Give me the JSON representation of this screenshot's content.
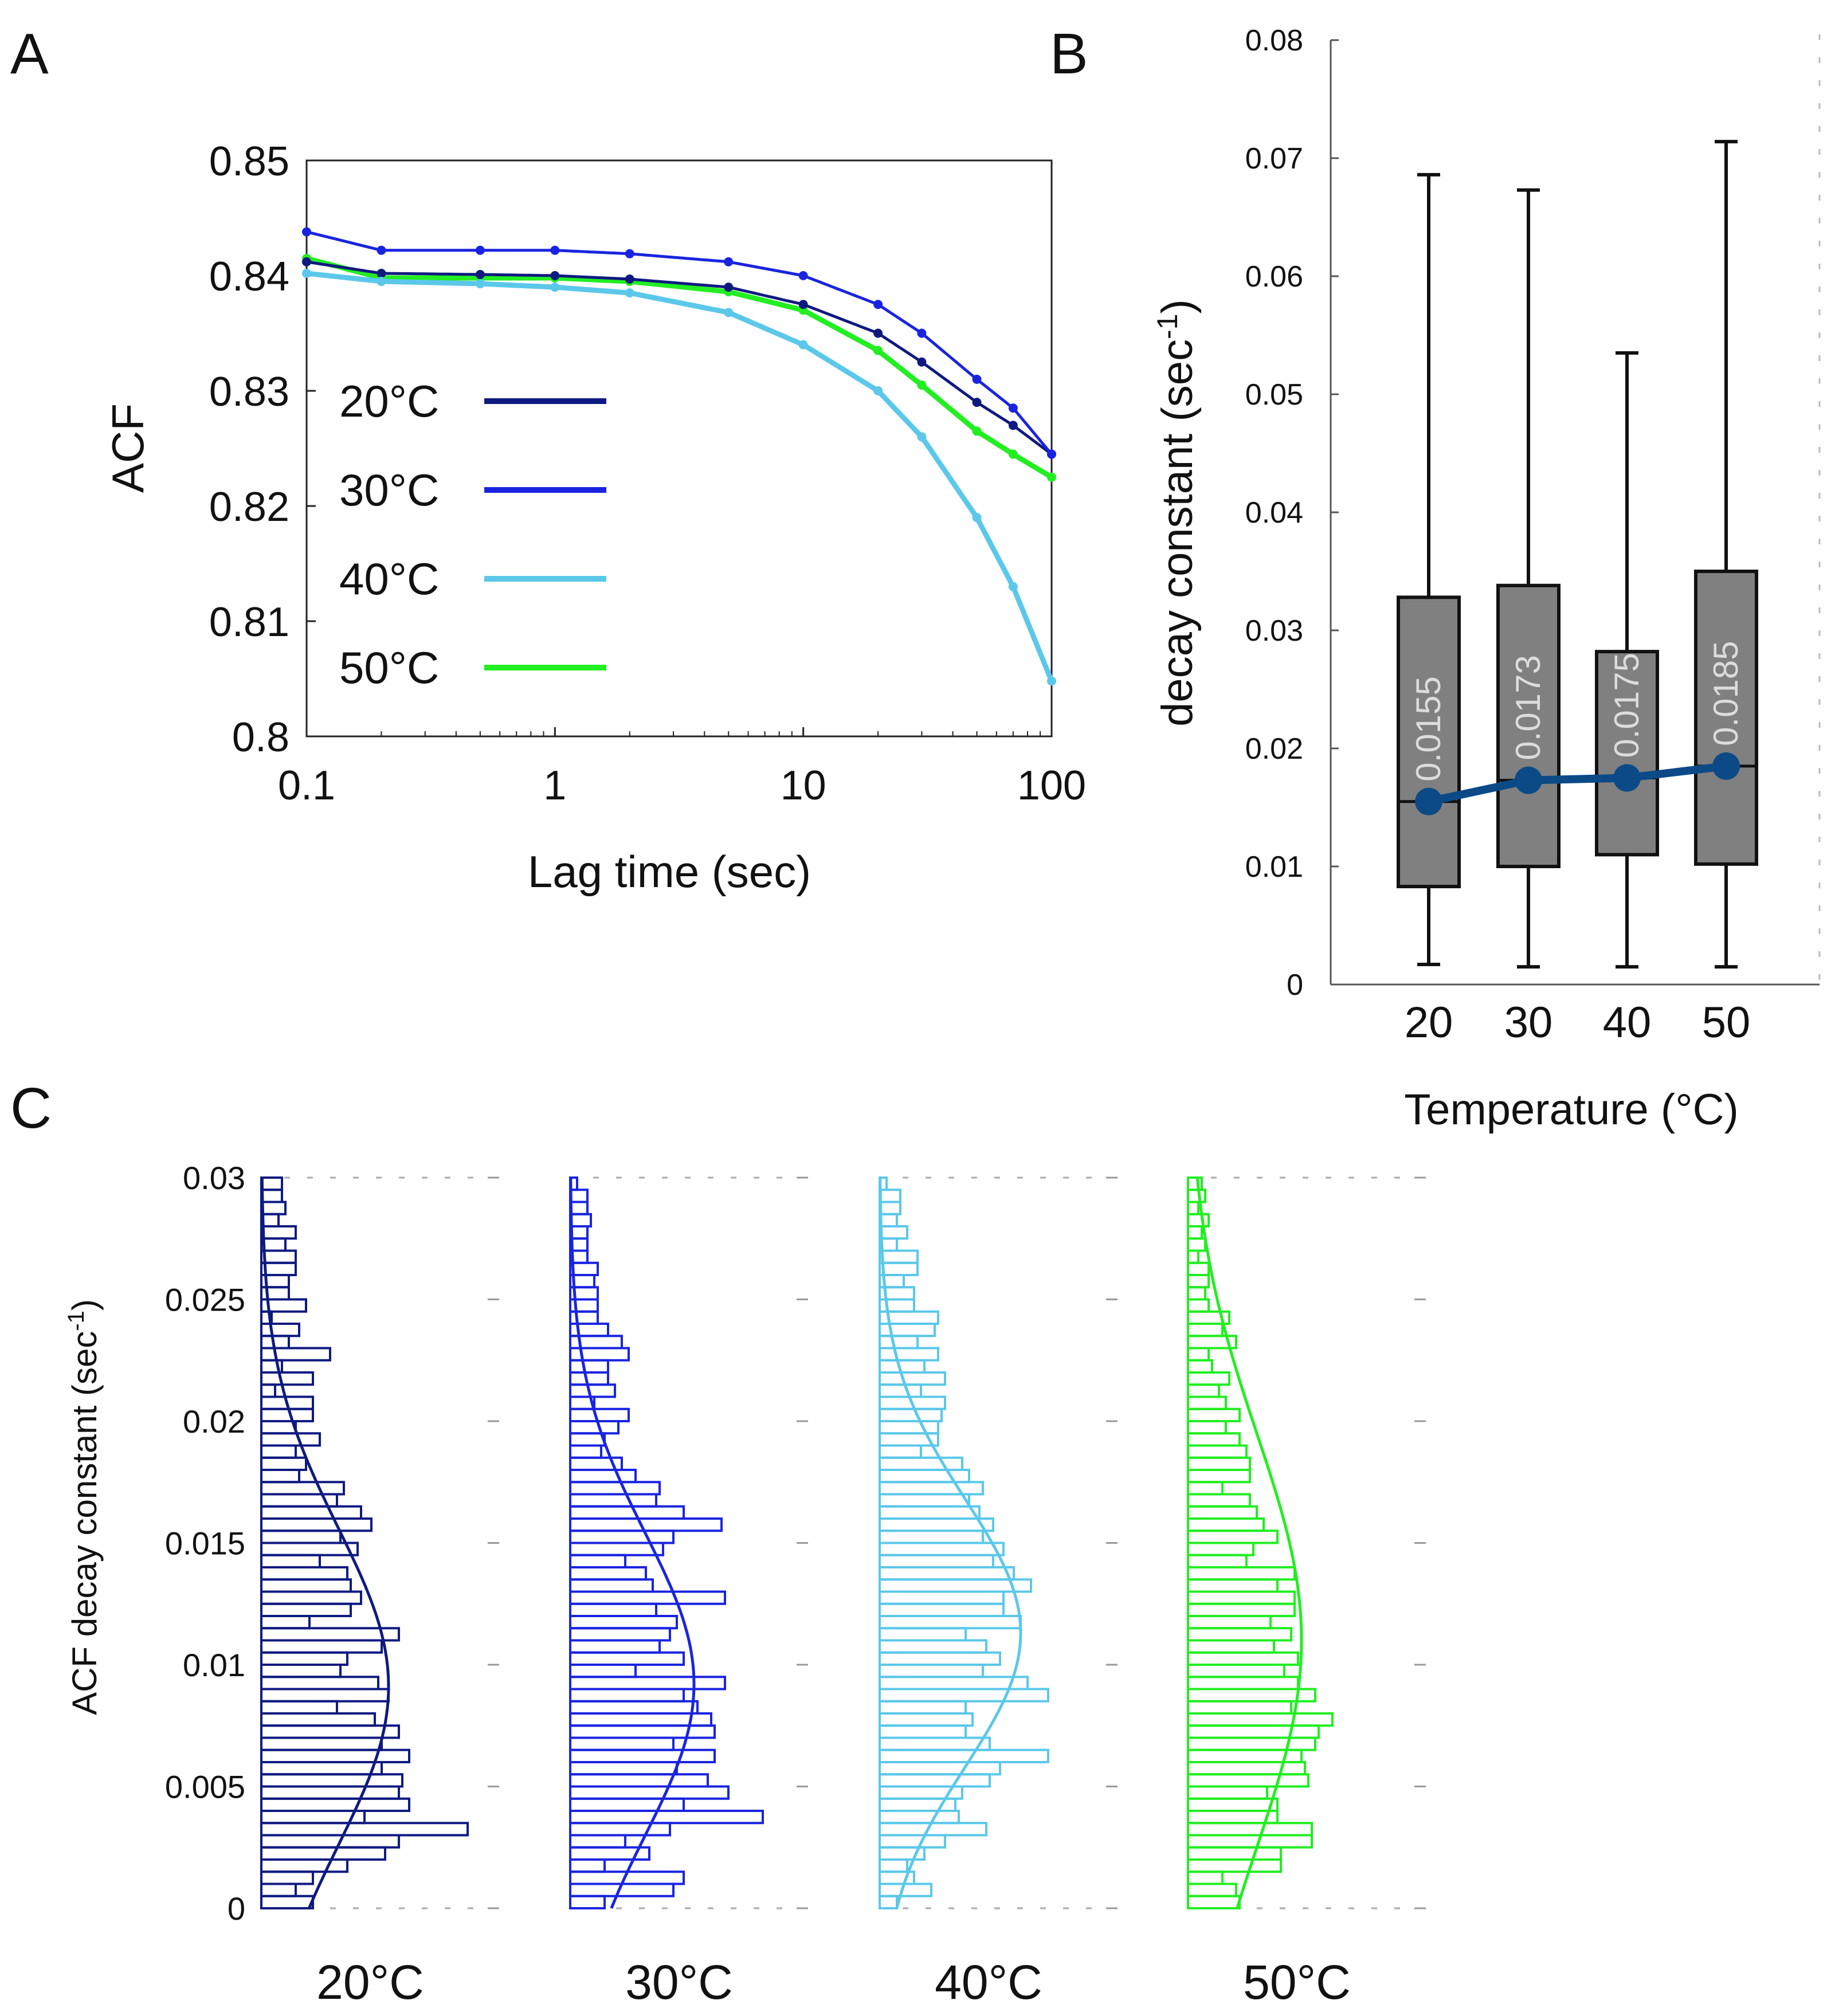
{
  "panels": {
    "a": "A",
    "b": "B",
    "c": "C"
  },
  "colors": {
    "c20": "#0f1a80",
    "c30": "#1a24e0",
    "c40": "#5bc8ea",
    "c50": "#22ee22",
    "box_fill": "#808080",
    "median_line": "#0b4a86"
  },
  "chart_data": [
    {
      "type": "line",
      "title": "",
      "xlabel": "Lag time (sec)",
      "ylabel": "ACF",
      "xscale": "log",
      "xlim": [
        0.1,
        100
      ],
      "ylim": [
        0.8,
        0.85
      ],
      "xticks": [
        {
          "v": 0.1,
          "label": "0.1"
        },
        {
          "v": 1,
          "label": "1"
        },
        {
          "v": 10,
          "label": "10"
        },
        {
          "v": 100,
          "label": "100"
        }
      ],
      "yticks": [
        {
          "v": 0.8,
          "label": "0.8"
        },
        {
          "v": 0.81,
          "label": "0.81"
        },
        {
          "v": 0.82,
          "label": "0.82"
        },
        {
          "v": 0.83,
          "label": "0.83"
        },
        {
          "v": 0.84,
          "label": "0.84"
        },
        {
          "v": 0.85,
          "label": "0.85"
        }
      ],
      "legend_position": "center-left",
      "series": [
        {
          "name": "20°C",
          "color": "#0f1a80",
          "x": [
            0.1,
            0.2,
            0.5,
            1,
            2,
            5,
            10,
            20,
            30,
            50,
            70,
            100
          ],
          "y": [
            0.8412,
            0.8402,
            0.8401,
            0.84,
            0.8397,
            0.839,
            0.8375,
            0.835,
            0.8325,
            0.829,
            0.827,
            0.8245
          ]
        },
        {
          "name": "30°C",
          "color": "#1a24e0",
          "x": [
            0.1,
            0.2,
            0.5,
            1,
            2,
            5,
            10,
            20,
            30,
            50,
            70,
            100
          ],
          "y": [
            0.8438,
            0.8422,
            0.8422,
            0.8422,
            0.8419,
            0.8412,
            0.84,
            0.8375,
            0.835,
            0.831,
            0.8285,
            0.8245
          ]
        },
        {
          "name": "40°C",
          "color": "#5bc8ea",
          "x": [
            0.1,
            0.2,
            0.5,
            1,
            2,
            5,
            10,
            20,
            30,
            50,
            70,
            100
          ],
          "y": [
            0.8402,
            0.8395,
            0.8393,
            0.839,
            0.8385,
            0.8368,
            0.834,
            0.83,
            0.826,
            0.819,
            0.813,
            0.8048
          ]
        },
        {
          "name": "50°C",
          "color": "#22ee22",
          "x": [
            0.1,
            0.2,
            0.5,
            1,
            2,
            5,
            10,
            20,
            30,
            50,
            70,
            100
          ],
          "y": [
            0.8415,
            0.8398,
            0.8398,
            0.8398,
            0.8395,
            0.8386,
            0.837,
            0.8335,
            0.8305,
            0.8265,
            0.8245,
            0.8225
          ]
        }
      ]
    },
    {
      "type": "box",
      "title": "",
      "xlabel": "Temperature (°C)",
      "ylabel": "decay constant (sec",
      "ylabel_sup": "-1",
      "ylabel_end": ")",
      "ylim": [
        0,
        0.08
      ],
      "yticks": [
        {
          "v": 0,
          "label": "0"
        },
        {
          "v": 0.01,
          "label": "0.01"
        },
        {
          "v": 0.02,
          "label": "0.02"
        },
        {
          "v": 0.03,
          "label": "0.03"
        },
        {
          "v": 0.04,
          "label": "0.04"
        },
        {
          "v": 0.05,
          "label": "0.05"
        },
        {
          "v": 0.06,
          "label": "0.06"
        },
        {
          "v": 0.07,
          "label": "0.07"
        },
        {
          "v": 0.08,
          "label": "0.08"
        }
      ],
      "categories": [
        "20",
        "30",
        "40",
        "50"
      ],
      "boxes": [
        {
          "category": "20",
          "min": 0.0017,
          "q1": 0.0083,
          "median": 0.0155,
          "q3": 0.0328,
          "max": 0.0686,
          "median_label": "0.0155"
        },
        {
          "category": "30",
          "min": 0.0015,
          "q1": 0.01,
          "median": 0.0173,
          "q3": 0.0338,
          "max": 0.0673,
          "median_label": "0.0173"
        },
        {
          "category": "40",
          "min": 0.0015,
          "q1": 0.011,
          "median": 0.0175,
          "q3": 0.0282,
          "max": 0.0535,
          "median_label": "0.0175"
        },
        {
          "category": "50",
          "min": 0.0015,
          "q1": 0.0102,
          "median": 0.0185,
          "q3": 0.035,
          "max": 0.0714,
          "median_label": "0.0185"
        }
      ],
      "median_series": [
        0.0155,
        0.0173,
        0.0175,
        0.0185
      ]
    },
    {
      "type": "histogram",
      "orientation": "horizontal",
      "ylabel": "ACF decay constant (sec",
      "ylabel_sup": "-1",
      "ylabel_end": ")",
      "ylim": [
        0,
        0.03
      ],
      "yticks": [
        {
          "v": 0,
          "label": "0"
        },
        {
          "v": 0.005,
          "label": "0.005"
        },
        {
          "v": 0.01,
          "label": "0.01"
        },
        {
          "v": 0.015,
          "label": "0.015"
        },
        {
          "v": 0.02,
          "label": "0.02"
        },
        {
          "v": 0.025,
          "label": "0.025"
        },
        {
          "v": 0.03,
          "label": "0.03"
        }
      ],
      "bin_width": 0.0005,
      "series": [
        {
          "name": "20°C",
          "color": "#0f1a80",
          "counts": [
            1.5,
            1,
            1.5,
            2.5,
            3.6,
            4.0,
            6.0,
            3.0,
            4.3,
            4.0,
            4.1,
            3.5,
            4.3,
            3.5,
            4.0,
            3.3,
            2.2,
            3.7,
            3.4,
            2.3,
            2.5,
            3.5,
            4.0,
            1.4,
            2.6,
            2.9,
            2.6,
            2.5,
            1.7,
            2.8,
            2.3,
            3.2,
            2.9,
            2.2,
            2.4,
            1.1,
            1.3,
            1.0,
            1.7,
            1.0,
            1.5,
            1.5,
            0.4,
            1.5,
            0.6,
            2.0,
            0.8,
            1.1,
            0.3,
            1.3,
            0.8,
            0.8,
            1.0,
            1.0,
            0.7,
            1.0,
            0.5,
            0.7,
            0.6,
            0.6
          ],
          "fit_mean": 0.0091,
          "fit_sd": 0.0065,
          "fit_peak": 3.7
        },
        {
          "name": "30°C",
          "color": "#1a24e0",
          "counts": [
            1.0,
            3.0,
            3.3,
            1.0,
            2.3,
            1.6,
            2.9,
            5.6,
            3.3,
            4.6,
            4.0,
            3.1,
            4.2,
            3.0,
            4.2,
            4.1,
            3.7,
            3.3,
            4.5,
            1.9,
            3.3,
            2.6,
            2.9,
            3.1,
            2.5,
            4.5,
            2.4,
            2.2,
            1.6,
            2.7,
            3.0,
            4.4,
            3.3,
            2.5,
            2.6,
            1.9,
            1.5,
            0.9,
            1.0,
            1.4,
            1.7,
            0.7,
            1.3,
            1.1,
            1.1,
            1.7,
            1.5,
            1.1,
            0.8,
            0.8,
            0.8,
            0.7,
            0.8,
            0.5,
            0.5,
            0.5,
            0.6,
            0.5,
            0.5,
            0.2
          ],
          "fit_mean": 0.0092,
          "fit_sd": 0.0062,
          "fit_peak": 3.6
        },
        {
          "name": "40°C",
          "color": "#5bc8ea",
          "counts": [
            0.5,
            1.5,
            1.0,
            0.8,
            1.3,
            1.9,
            3.1,
            2.3,
            2.2,
            2.4,
            3.2,
            3.5,
            4.9,
            3.2,
            2.5,
            2.7,
            2.5,
            4.9,
            4.3,
            3.0,
            3.5,
            3.1,
            2.5,
            4.1,
            3.6,
            3.6,
            4.4,
            3.9,
            3.3,
            3.6,
            3.0,
            3.3,
            2.9,
            2.6,
            3.0,
            2.6,
            2.4,
            1.2,
            1.7,
            1.7,
            1.8,
            1.9,
            1.2,
            1.9,
            1.3,
            1.7,
            1.1,
            1.6,
            1.7,
            1.0,
            1.0,
            0.7,
            1.1,
            1.1,
            0.5,
            0.8,
            0.5,
            0.6,
            0.6,
            0.2
          ],
          "fit_mean": 0.0113,
          "fit_sd": 0.0055,
          "fit_peak": 4.1
        },
        {
          "name": "50°C",
          "color": "#22ee22",
          "counts": [
            1.5,
            1.4,
            1.0,
            2.7,
            2.7,
            3.6,
            3.6,
            2.6,
            2.6,
            2.3,
            3.5,
            3.4,
            3.3,
            3.7,
            3.8,
            4.2,
            3.0,
            3.7,
            3.2,
            2.8,
            3.2,
            2.5,
            3.0,
            2.4,
            3.1,
            3.1,
            2.6,
            3.1,
            1.7,
            1.9,
            2.6,
            2.2,
            2.0,
            1.8,
            1.0,
            1.8,
            1.8,
            1.7,
            1.5,
            1.1,
            1.5,
            1.1,
            0.9,
            1.2,
            0.7,
            0.6,
            1.4,
            1.0,
            1.2,
            0.6,
            0.5,
            0.6,
            0.6,
            0.3,
            0.5,
            0.4,
            0.6,
            0.3,
            0.5,
            0.4
          ],
          "fit_mean": 0.011,
          "fit_sd": 0.0085,
          "fit_peak": 3.3
        }
      ]
    }
  ]
}
